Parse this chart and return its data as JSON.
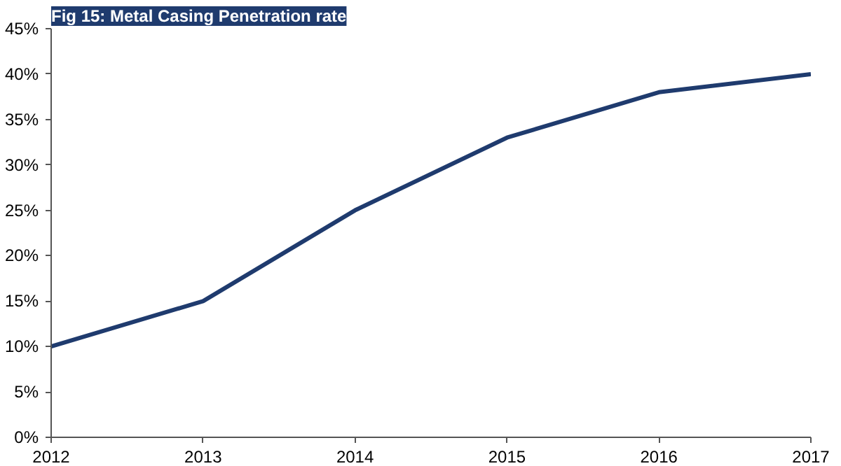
{
  "chart_data": {
    "type": "line",
    "title": "Fig 15: Metal Casing Penetration rate",
    "x": [
      2012,
      2013,
      2014,
      2015,
      2016,
      2017
    ],
    "series": [
      {
        "color": "#1f3b6e",
        "values": [
          10,
          15,
          25,
          33,
          38,
          40
        ]
      }
    ],
    "xlim": [
      2012,
      2017
    ],
    "xticks": [
      2012,
      2013,
      2014,
      2015,
      2016,
      2017
    ],
    "ylim": [
      0,
      45
    ],
    "yticks": [
      {
        "value": 0,
        "label": "0%"
      },
      {
        "value": 5,
        "label": "5%"
      },
      {
        "value": 10,
        "label": "10%"
      },
      {
        "value": 15,
        "label": "15%"
      },
      {
        "value": 20,
        "label": "20%"
      },
      {
        "value": 25,
        "label": "25%"
      },
      {
        "value": 30,
        "label": "30%"
      },
      {
        "value": 35,
        "label": "35%"
      },
      {
        "value": 40,
        "label": "40%"
      },
      {
        "value": 45,
        "label": "45%"
      }
    ],
    "line_style": "solid"
  }
}
